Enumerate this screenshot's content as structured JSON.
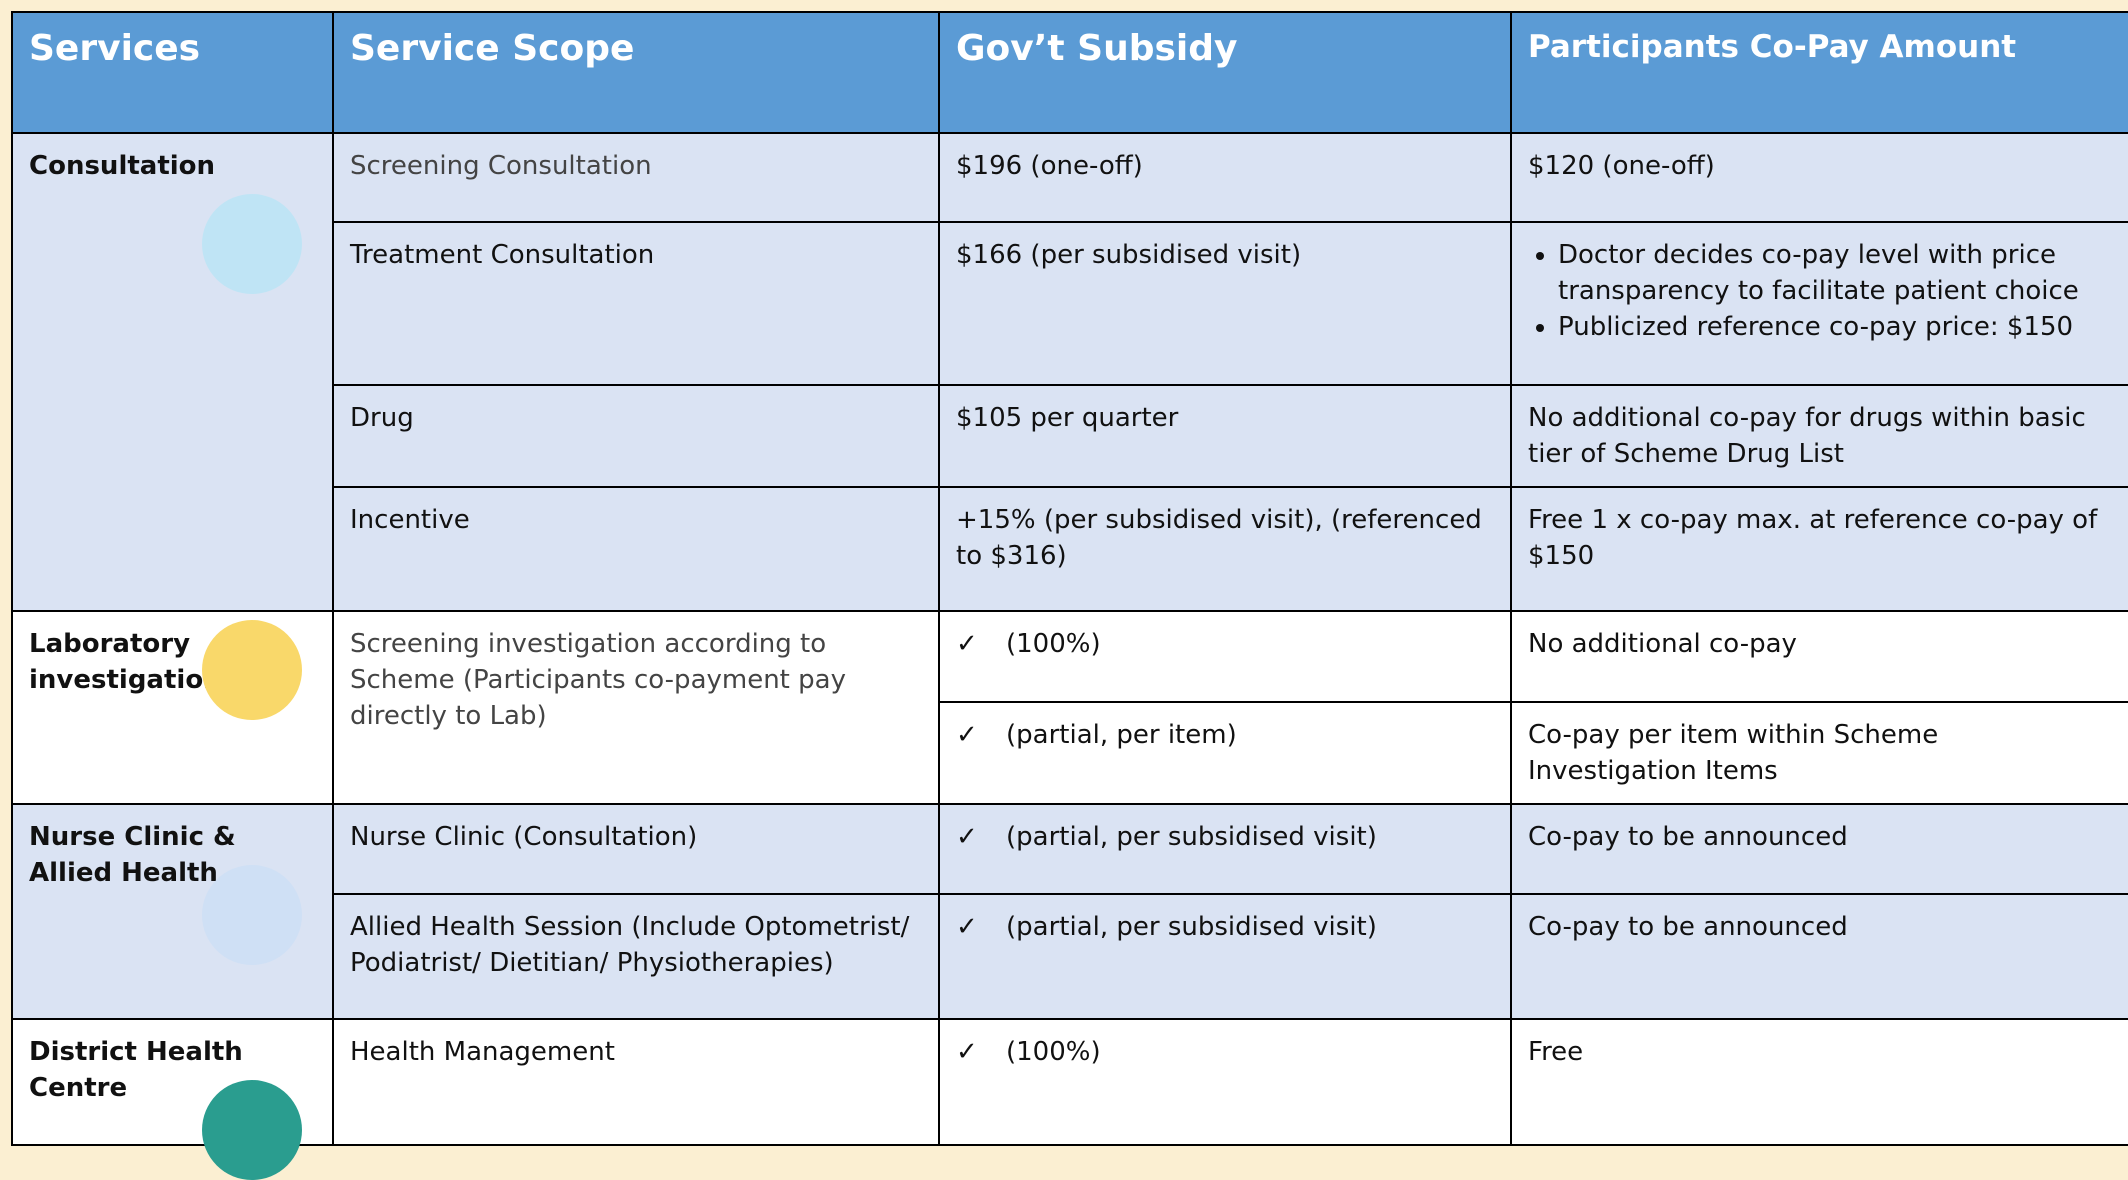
{
  "header": [
    "Services",
    "Service Scope",
    "Gov’t Subsidy",
    "Participants Co-Pay Amount"
  ],
  "groups": [
    {
      "service": "Consultation",
      "rows": [
        {
          "scope": "Screening Consultation",
          "subsidy": {
            "text": "$196 (one-off)"
          },
          "copay": {
            "text": "$120 (one-off)"
          }
        },
        {
          "scope": "Treatment Consultation",
          "subsidy": {
            "text": "$166 (per subsidised visit)"
          },
          "copay": {
            "bullets": [
              "Doctor decides co-pay level with price transparency to facilitate patient choice",
              "Publicized reference co-pay price: $150"
            ]
          }
        },
        {
          "scope": "Drug",
          "subsidy": {
            "text": "$105 per quarter"
          },
          "copay": {
            "text": "No additional co-pay for drugs within basic tier of  Scheme Drug List"
          }
        },
        {
          "scope": "Incentive",
          "subsidy": {
            "text": "+15% (per subsidised visit), (referenced to $316)"
          },
          "copay": {
            "text": "Free 1 x co-pay max. at reference co-pay of $150"
          }
        }
      ]
    },
    {
      "service": "Laboratory investigation",
      "rows": [
        {
          "scope": "Screening investigation according to Scheme (Participants co-payment pay directly to Lab)",
          "subsidy": {
            "check": "✓",
            "text": "(100%)"
          },
          "copay": {
            "text": "No additional co-pay"
          }
        },
        {
          "subsidy": {
            "check": "✓",
            "text": "(partial, per item)"
          },
          "copay": {
            "text": "Co-pay per item within Scheme Investigation Items"
          }
        }
      ]
    },
    {
      "service": "Nurse Clinic & Allied Health",
      "rows": [
        {
          "scope": "Nurse Clinic (Consultation)",
          "subsidy": {
            "check": "✓",
            "text": "(partial, per subsidised visit)"
          },
          "copay": {
            "text": "Co-pay to be announced"
          }
        },
        {
          "scope": "Allied Health Session (Include Optometrist/ Podiatrist/ Dietitian/ Physiotherapies)",
          "subsidy": {
            "check": "✓",
            "text": "(partial, per subsidised visit)"
          },
          "copay": {
            "text": "Co-pay to be announced"
          }
        }
      ]
    },
    {
      "service": "District Health Centre",
      "rows": [
        {
          "scope": "Health Management",
          "subsidy": {
            "check": "✓",
            "text": "(100%)"
          },
          "copay": {
            "text": "Free"
          }
        }
      ]
    }
  ]
}
